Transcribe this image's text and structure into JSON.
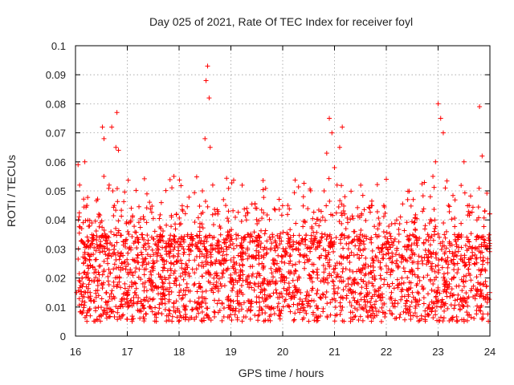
{
  "chart_data": {
    "type": "scatter",
    "title": "Day 025 of 2021, Rate Of TEC Index for receiver foyl",
    "xlabel": "GPS time / hours",
    "ylabel": "ROTI / TECUs",
    "xlim": [
      16,
      24
    ],
    "ylim": [
      0,
      0.1
    ],
    "x_ticks": [
      16,
      17,
      18,
      19,
      20,
      21,
      22,
      23,
      24
    ],
    "x_tick_labels": [
      "16",
      "17",
      "18",
      "19",
      "20",
      "21",
      "22",
      "23",
      "24"
    ],
    "y_ticks": [
      0,
      0.01,
      0.02,
      0.03,
      0.04,
      0.05,
      0.06,
      0.07,
      0.08,
      0.09,
      0.1
    ],
    "y_tick_labels": [
      "0",
      "0.01",
      "0.02",
      "0.03",
      "0.04",
      "0.05",
      "0.06",
      "0.07",
      "0.08",
      "0.09",
      "0.1"
    ],
    "grid": true,
    "marker": "+",
    "color": "#ff0000",
    "series": [
      {
        "name": "ROTI",
        "x": [
          16.02,
          16.05,
          16.08,
          16.12,
          16.15,
          16.18,
          16.22,
          16.25,
          16.28,
          16.3,
          16.35,
          16.4,
          16.45,
          16.5,
          16.52,
          16.55,
          16.6,
          16.65,
          16.7,
          16.72,
          16.75,
          16.78,
          16.8,
          16.83,
          16.85,
          16.88,
          16.9,
          16.95,
          17.0,
          17.05,
          17.1,
          17.15,
          17.2,
          17.3,
          17.4,
          17.5,
          17.6,
          17.7,
          17.75,
          17.8,
          17.9,
          17.95,
          18.0,
          18.05,
          18.1,
          18.2,
          18.3,
          18.4,
          18.45,
          18.5,
          18.52,
          18.55,
          18.58,
          18.6,
          18.65,
          18.7,
          18.8,
          18.9,
          19.0,
          19.1,
          19.2,
          19.3,
          19.4,
          19.5,
          19.6,
          19.7,
          19.8,
          19.9,
          20.0,
          20.1,
          20.2,
          20.3,
          20.4,
          20.5,
          20.6,
          20.7,
          20.8,
          20.85,
          20.9,
          20.95,
          21.0,
          21.05,
          21.1,
          21.15,
          21.2,
          21.3,
          21.4,
          21.5,
          21.6,
          21.7,
          21.8,
          21.9,
          22.0,
          22.1,
          22.2,
          22.3,
          22.4,
          22.5,
          22.6,
          22.7,
          22.8,
          22.85,
          22.9,
          22.95,
          23.0,
          23.05,
          23.1,
          23.2,
          23.3,
          23.4,
          23.5,
          23.6,
          23.7,
          23.75,
          23.8,
          23.85,
          23.9,
          23.95,
          24.0
        ],
        "y": [
          0.015,
          0.059,
          0.052,
          0.037,
          0.018,
          0.06,
          0.045,
          0.02,
          0.013,
          0.028,
          0.012,
          0.022,
          0.042,
          0.018,
          0.072,
          0.068,
          0.015,
          0.052,
          0.072,
          0.05,
          0.045,
          0.065,
          0.077,
          0.064,
          0.02,
          0.012,
          0.025,
          0.018,
          0.014,
          0.022,
          0.041,
          0.015,
          0.028,
          0.018,
          0.012,
          0.025,
          0.008,
          0.016,
          0.032,
          0.02,
          0.055,
          0.042,
          0.014,
          0.025,
          0.01,
          0.03,
          0.018,
          0.036,
          0.05,
          0.068,
          0.088,
          0.093,
          0.082,
          0.065,
          0.052,
          0.025,
          0.018,
          0.045,
          0.02,
          0.035,
          0.015,
          0.04,
          0.012,
          0.044,
          0.025,
          0.018,
          0.035,
          0.01,
          0.02,
          0.045,
          0.015,
          0.03,
          0.048,
          0.012,
          0.022,
          0.038,
          0.05,
          0.063,
          0.075,
          0.07,
          0.058,
          0.052,
          0.065,
          0.072,
          0.048,
          0.02,
          0.015,
          0.035,
          0.01,
          0.022,
          0.012,
          0.03,
          0.054,
          0.015,
          0.04,
          0.02,
          0.012,
          0.028,
          0.018,
          0.043,
          0.035,
          0.048,
          0.055,
          0.06,
          0.08,
          0.075,
          0.07,
          0.045,
          0.02,
          0.035,
          0.06,
          0.045,
          0.025,
          0.04,
          0.079,
          0.062,
          0.043,
          0.03,
          0.015
        ]
      }
    ],
    "background_cloud": {
      "description_values": "dense band of additional ROTI points",
      "x_range": [
        16.05,
        24.0
      ],
      "y_core_range": [
        0.005,
        0.035
      ],
      "count": 2600
    }
  }
}
